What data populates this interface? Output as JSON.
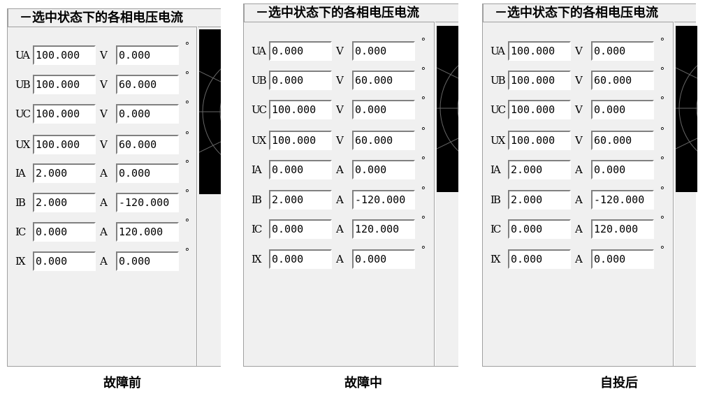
{
  "header_title": "－选中状态下的各相电压电流",
  "panels": [
    {
      "caption": "故障前",
      "rows": [
        {
          "label": "UA",
          "mag": "100.000",
          "unit": "V",
          "angle": "0.000"
        },
        {
          "label": "UB",
          "mag": "100.000",
          "unit": "V",
          "angle": "60.000"
        },
        {
          "label": "UC",
          "mag": "100.000",
          "unit": "V",
          "angle": "0.000"
        },
        {
          "label": "UX",
          "mag": "100.000",
          "unit": "V",
          "angle": "60.000"
        },
        {
          "label": "IA",
          "mag": "2.000",
          "unit": "A",
          "angle": "0.000"
        },
        {
          "label": "IB",
          "mag": "2.000",
          "unit": "A",
          "angle": "-120.000"
        },
        {
          "label": "IC",
          "mag": "0.000",
          "unit": "A",
          "angle": "120.000"
        },
        {
          "label": "IX",
          "mag": "0.000",
          "unit": "A",
          "angle": "0.000"
        }
      ]
    },
    {
      "caption": "故障中",
      "rows": [
        {
          "label": "UA",
          "mag": "0.000",
          "unit": "V",
          "angle": "0.000"
        },
        {
          "label": "UB",
          "mag": "0.000",
          "unit": "V",
          "angle": "60.000"
        },
        {
          "label": "UC",
          "mag": "100.000",
          "unit": "V",
          "angle": "0.000"
        },
        {
          "label": "UX",
          "mag": "100.000",
          "unit": "V",
          "angle": "60.000"
        },
        {
          "label": "IA",
          "mag": "0.000",
          "unit": "A",
          "angle": "0.000"
        },
        {
          "label": "IB",
          "mag": "2.000",
          "unit": "A",
          "angle": "-120.000"
        },
        {
          "label": "IC",
          "mag": "0.000",
          "unit": "A",
          "angle": "120.000"
        },
        {
          "label": "IX",
          "mag": "0.000",
          "unit": "A",
          "angle": "0.000"
        }
      ]
    },
    {
      "caption": "自投后",
      "rows": [
        {
          "label": "UA",
          "mag": "100.000",
          "unit": "V",
          "angle": "0.000"
        },
        {
          "label": "UB",
          "mag": "100.000",
          "unit": "V",
          "angle": "60.000"
        },
        {
          "label": "UC",
          "mag": "100.000",
          "unit": "V",
          "angle": "0.000"
        },
        {
          "label": "UX",
          "mag": "100.000",
          "unit": "V",
          "angle": "60.000"
        },
        {
          "label": "IA",
          "mag": "2.000",
          "unit": "A",
          "angle": "0.000"
        },
        {
          "label": "IB",
          "mag": "2.000",
          "unit": "A",
          "angle": "-120.000"
        },
        {
          "label": "IC",
          "mag": "0.000",
          "unit": "A",
          "angle": "120.000"
        },
        {
          "label": "IX",
          "mag": "0.000",
          "unit": "A",
          "angle": "0.000"
        }
      ]
    }
  ],
  "degree_symbol": "°"
}
